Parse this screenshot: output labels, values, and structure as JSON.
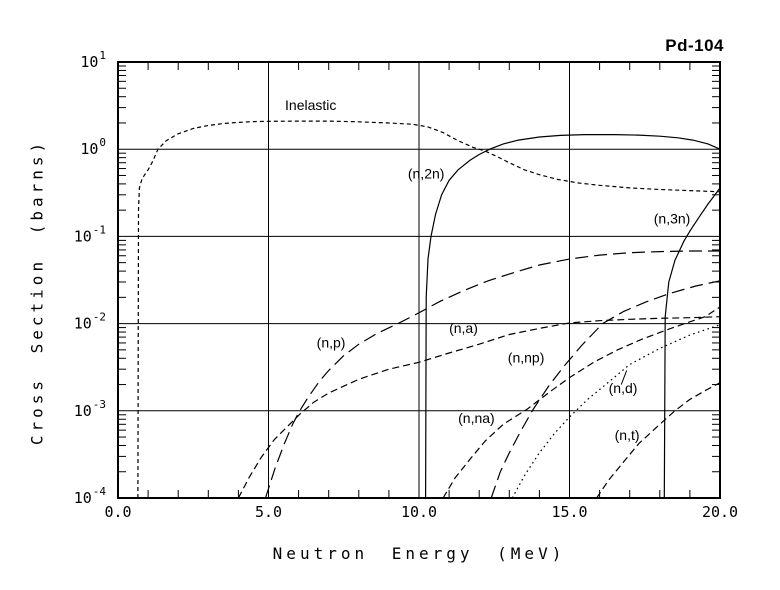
{
  "page": {
    "background": "#ffffff"
  },
  "chart_data": {
    "type": "line",
    "title": "Pd-104",
    "xlabel": "Neutron Energy (MeV)",
    "ylabel": "Cross Section (barns)",
    "x_range": [
      0.0,
      20.0
    ],
    "x_major_ticks": [
      {
        "value": 0,
        "label": "0.0"
      },
      {
        "value": 5,
        "label": "5.0"
      },
      {
        "value": 10,
        "label": "10.0"
      },
      {
        "value": 15,
        "label": "15.0"
      },
      {
        "value": 20,
        "label": "20.0"
      }
    ],
    "x_minor_tick_step": 1,
    "y_scale": "log",
    "y_exponent_range": [
      -4,
      1
    ],
    "y_ticks": [
      {
        "base": "10",
        "exp": "1"
      },
      {
        "base": "10",
        "exp": "0"
      },
      {
        "base": "10",
        "exp": "-1"
      },
      {
        "base": "10",
        "exp": "-2"
      },
      {
        "base": "10",
        "exp": "-3"
      },
      {
        "base": "10",
        "exp": "-4"
      }
    ],
    "grid": true,
    "legend_position": "inline-labels",
    "line_color": "#000000",
    "series": [
      {
        "id": "inelastic",
        "name": "Inelastic",
        "linestyle": "short-dash",
        "points": [
          [
            0.66,
            0.0001
          ],
          [
            0.68,
            0.2
          ],
          [
            0.71,
            0.36
          ],
          [
            0.8,
            0.46
          ],
          [
            1.0,
            0.58
          ],
          [
            1.15,
            0.72
          ],
          [
            1.33,
            1.0
          ],
          [
            1.6,
            1.25
          ],
          [
            2.0,
            1.5
          ],
          [
            2.5,
            1.73
          ],
          [
            3.0,
            1.87
          ],
          [
            3.5,
            1.97
          ],
          [
            4.0,
            2.03
          ],
          [
            4.5,
            2.07
          ],
          [
            5.0,
            2.09
          ],
          [
            6.0,
            2.1
          ],
          [
            7.0,
            2.1
          ],
          [
            8.0,
            2.06
          ],
          [
            9.0,
            2.0
          ],
          [
            9.8,
            1.93
          ],
          [
            10.3,
            1.8
          ],
          [
            10.8,
            1.55
          ],
          [
            11.3,
            1.25
          ],
          [
            11.8,
            1.05
          ],
          [
            12.2,
            0.95
          ],
          [
            12.6,
            0.82
          ],
          [
            13.0,
            0.7
          ],
          [
            13.5,
            0.58
          ],
          [
            14.0,
            0.51
          ],
          [
            14.6,
            0.45
          ],
          [
            15.3,
            0.41
          ],
          [
            16.0,
            0.385
          ],
          [
            17.0,
            0.36
          ],
          [
            18.0,
            0.345
          ],
          [
            19.0,
            0.335
          ],
          [
            20.0,
            0.325
          ]
        ]
      },
      {
        "id": "n-2n",
        "name": "(n,2n)",
        "linestyle": "solid",
        "points": [
          [
            10.22,
            0.0001
          ],
          [
            10.24,
            0.02
          ],
          [
            10.3,
            0.055
          ],
          [
            10.4,
            0.1
          ],
          [
            10.55,
            0.18
          ],
          [
            10.75,
            0.3
          ],
          [
            11.0,
            0.44
          ],
          [
            11.3,
            0.58
          ],
          [
            11.7,
            0.75
          ],
          [
            12.0,
            0.87
          ],
          [
            12.35,
            1.0
          ],
          [
            12.8,
            1.15
          ],
          [
            13.3,
            1.27
          ],
          [
            14.0,
            1.38
          ],
          [
            14.7,
            1.44
          ],
          [
            15.5,
            1.47
          ],
          [
            16.5,
            1.47
          ],
          [
            17.3,
            1.45
          ],
          [
            18.0,
            1.41
          ],
          [
            18.6,
            1.35
          ],
          [
            19.1,
            1.27
          ],
          [
            19.6,
            1.15
          ],
          [
            20.0,
            1.0
          ]
        ]
      },
      {
        "id": "n-3n",
        "name": "(n,3n)",
        "linestyle": "solid",
        "points": [
          [
            18.15,
            0.0001
          ],
          [
            18.18,
            0.012
          ],
          [
            18.3,
            0.03
          ],
          [
            18.5,
            0.053
          ],
          [
            18.8,
            0.088
          ],
          [
            19.0,
            0.115
          ],
          [
            19.3,
            0.165
          ],
          [
            19.6,
            0.235
          ],
          [
            19.8,
            0.29
          ],
          [
            20.0,
            0.36
          ]
        ]
      },
      {
        "id": "n-p",
        "name": "(n,p)",
        "linestyle": "long-dash",
        "points": [
          [
            4.9,
            0.0001
          ],
          [
            5.2,
            0.00021
          ],
          [
            5.5,
            0.0004
          ],
          [
            5.8,
            0.0007
          ],
          [
            6.0,
            0.00095
          ],
          [
            6.3,
            0.0014
          ],
          [
            6.7,
            0.0022
          ],
          [
            7.0,
            0.0029
          ],
          [
            7.5,
            0.0043
          ],
          [
            8.0,
            0.0058
          ],
          [
            8.6,
            0.0077
          ],
          [
            9.3,
            0.01
          ],
          [
            10.0,
            0.0133
          ],
          [
            10.7,
            0.018
          ],
          [
            11.5,
            0.024
          ],
          [
            12.3,
            0.031
          ],
          [
            13.2,
            0.039
          ],
          [
            14.0,
            0.047
          ],
          [
            15.0,
            0.055
          ],
          [
            16.0,
            0.061
          ],
          [
            17.0,
            0.065
          ],
          [
            18.0,
            0.067
          ],
          [
            19.0,
            0.068
          ],
          [
            20.0,
            0.068
          ]
        ]
      },
      {
        "id": "n-a",
        "name": "(n,a)",
        "linestyle": "dash",
        "points": [
          [
            4.0,
            0.0001
          ],
          [
            4.35,
            0.00017
          ],
          [
            4.75,
            0.00029
          ],
          [
            5.2,
            0.00047
          ],
          [
            5.7,
            0.0007
          ],
          [
            6.05,
            0.00092
          ],
          [
            6.5,
            0.00125
          ],
          [
            7.0,
            0.0016
          ],
          [
            8.0,
            0.0023
          ],
          [
            9.0,
            0.003
          ],
          [
            10.0,
            0.0036
          ],
          [
            11.0,
            0.0046
          ],
          [
            12.0,
            0.0058
          ],
          [
            13.0,
            0.0075
          ],
          [
            14.0,
            0.0088
          ],
          [
            15.0,
            0.0102
          ],
          [
            16.0,
            0.0108
          ],
          [
            17.0,
            0.0112
          ],
          [
            18.0,
            0.0115
          ],
          [
            19.0,
            0.0117
          ],
          [
            20.0,
            0.012
          ]
        ]
      },
      {
        "id": "n-np",
        "name": "(n,np)",
        "linestyle": "long-dash",
        "points": [
          [
            12.4,
            0.0001
          ],
          [
            12.7,
            0.0002
          ],
          [
            13.0,
            0.00033
          ],
          [
            13.4,
            0.0006
          ],
          [
            13.8,
            0.00105
          ],
          [
            14.3,
            0.0019
          ],
          [
            14.8,
            0.0032
          ],
          [
            15.4,
            0.0056
          ],
          [
            16.1,
            0.01
          ],
          [
            16.8,
            0.0138
          ],
          [
            17.5,
            0.0175
          ],
          [
            18.3,
            0.022
          ],
          [
            19.2,
            0.027
          ],
          [
            20.0,
            0.031
          ]
        ]
      },
      {
        "id": "n-na",
        "name": "(n,na)",
        "linestyle": "dash",
        "points": [
          [
            10.8,
            0.0001
          ],
          [
            11.2,
            0.00017
          ],
          [
            11.7,
            0.00028
          ],
          [
            12.2,
            0.00045
          ],
          [
            12.8,
            0.0007
          ],
          [
            13.6,
            0.00105
          ],
          [
            14.4,
            0.0017
          ],
          [
            15.0,
            0.0024
          ],
          [
            15.8,
            0.0036
          ],
          [
            16.6,
            0.005
          ],
          [
            17.4,
            0.0066
          ],
          [
            18.2,
            0.0084
          ],
          [
            19.0,
            0.0105
          ],
          [
            19.5,
            0.012
          ],
          [
            20.0,
            0.0155
          ]
        ]
      },
      {
        "id": "n-d",
        "name": "(n,d)",
        "linestyle": "dot",
        "points": [
          [
            13.1,
            0.0001
          ],
          [
            13.5,
            0.00018
          ],
          [
            14.0,
            0.00033
          ],
          [
            14.5,
            0.00055
          ],
          [
            15.0,
            0.00085
          ],
          [
            15.6,
            0.00135
          ],
          [
            16.2,
            0.002
          ],
          [
            17.0,
            0.0034
          ],
          [
            18.0,
            0.0052
          ],
          [
            19.0,
            0.0074
          ],
          [
            20.0,
            0.0097
          ]
        ]
      },
      {
        "id": "n-t",
        "name": "(n,t)",
        "linestyle": "dash",
        "points": [
          [
            15.9,
            0.0001
          ],
          [
            16.3,
            0.00016
          ],
          [
            16.8,
            0.00026
          ],
          [
            17.3,
            0.00042
          ],
          [
            18.0,
            0.0007
          ],
          [
            18.5,
            0.001
          ],
          [
            19.0,
            0.00135
          ],
          [
            19.5,
            0.0017
          ],
          [
            20.0,
            0.0021
          ]
        ]
      }
    ],
    "curve_labels": [
      {
        "text": "Inelastic",
        "x": 5.55,
        "y": 2.8
      },
      {
        "text": "(n,2n)",
        "x": 9.63,
        "y": 0.46
      },
      {
        "text": "(n,3n)",
        "x": 17.8,
        "y": 0.14
      },
      {
        "text": "(n,p)",
        "x": 6.6,
        "y": 0.0053
      },
      {
        "text": "(n,a)",
        "x": 11.0,
        "y": 0.0078
      },
      {
        "text": "(n,np)",
        "x": 12.95,
        "y": 0.0036
      },
      {
        "text": "(n,na)",
        "x": 11.3,
        "y": 0.00072
      },
      {
        "text": "(n,d)",
        "x": 16.3,
        "y": 0.0016
      },
      {
        "text": "(n,t)",
        "x": 16.5,
        "y": 0.00046
      }
    ],
    "leader_lines": [
      {
        "x1": 16.72,
        "y1": 0.002,
        "x2": 16.9,
        "y2": 0.0029
      }
    ]
  }
}
